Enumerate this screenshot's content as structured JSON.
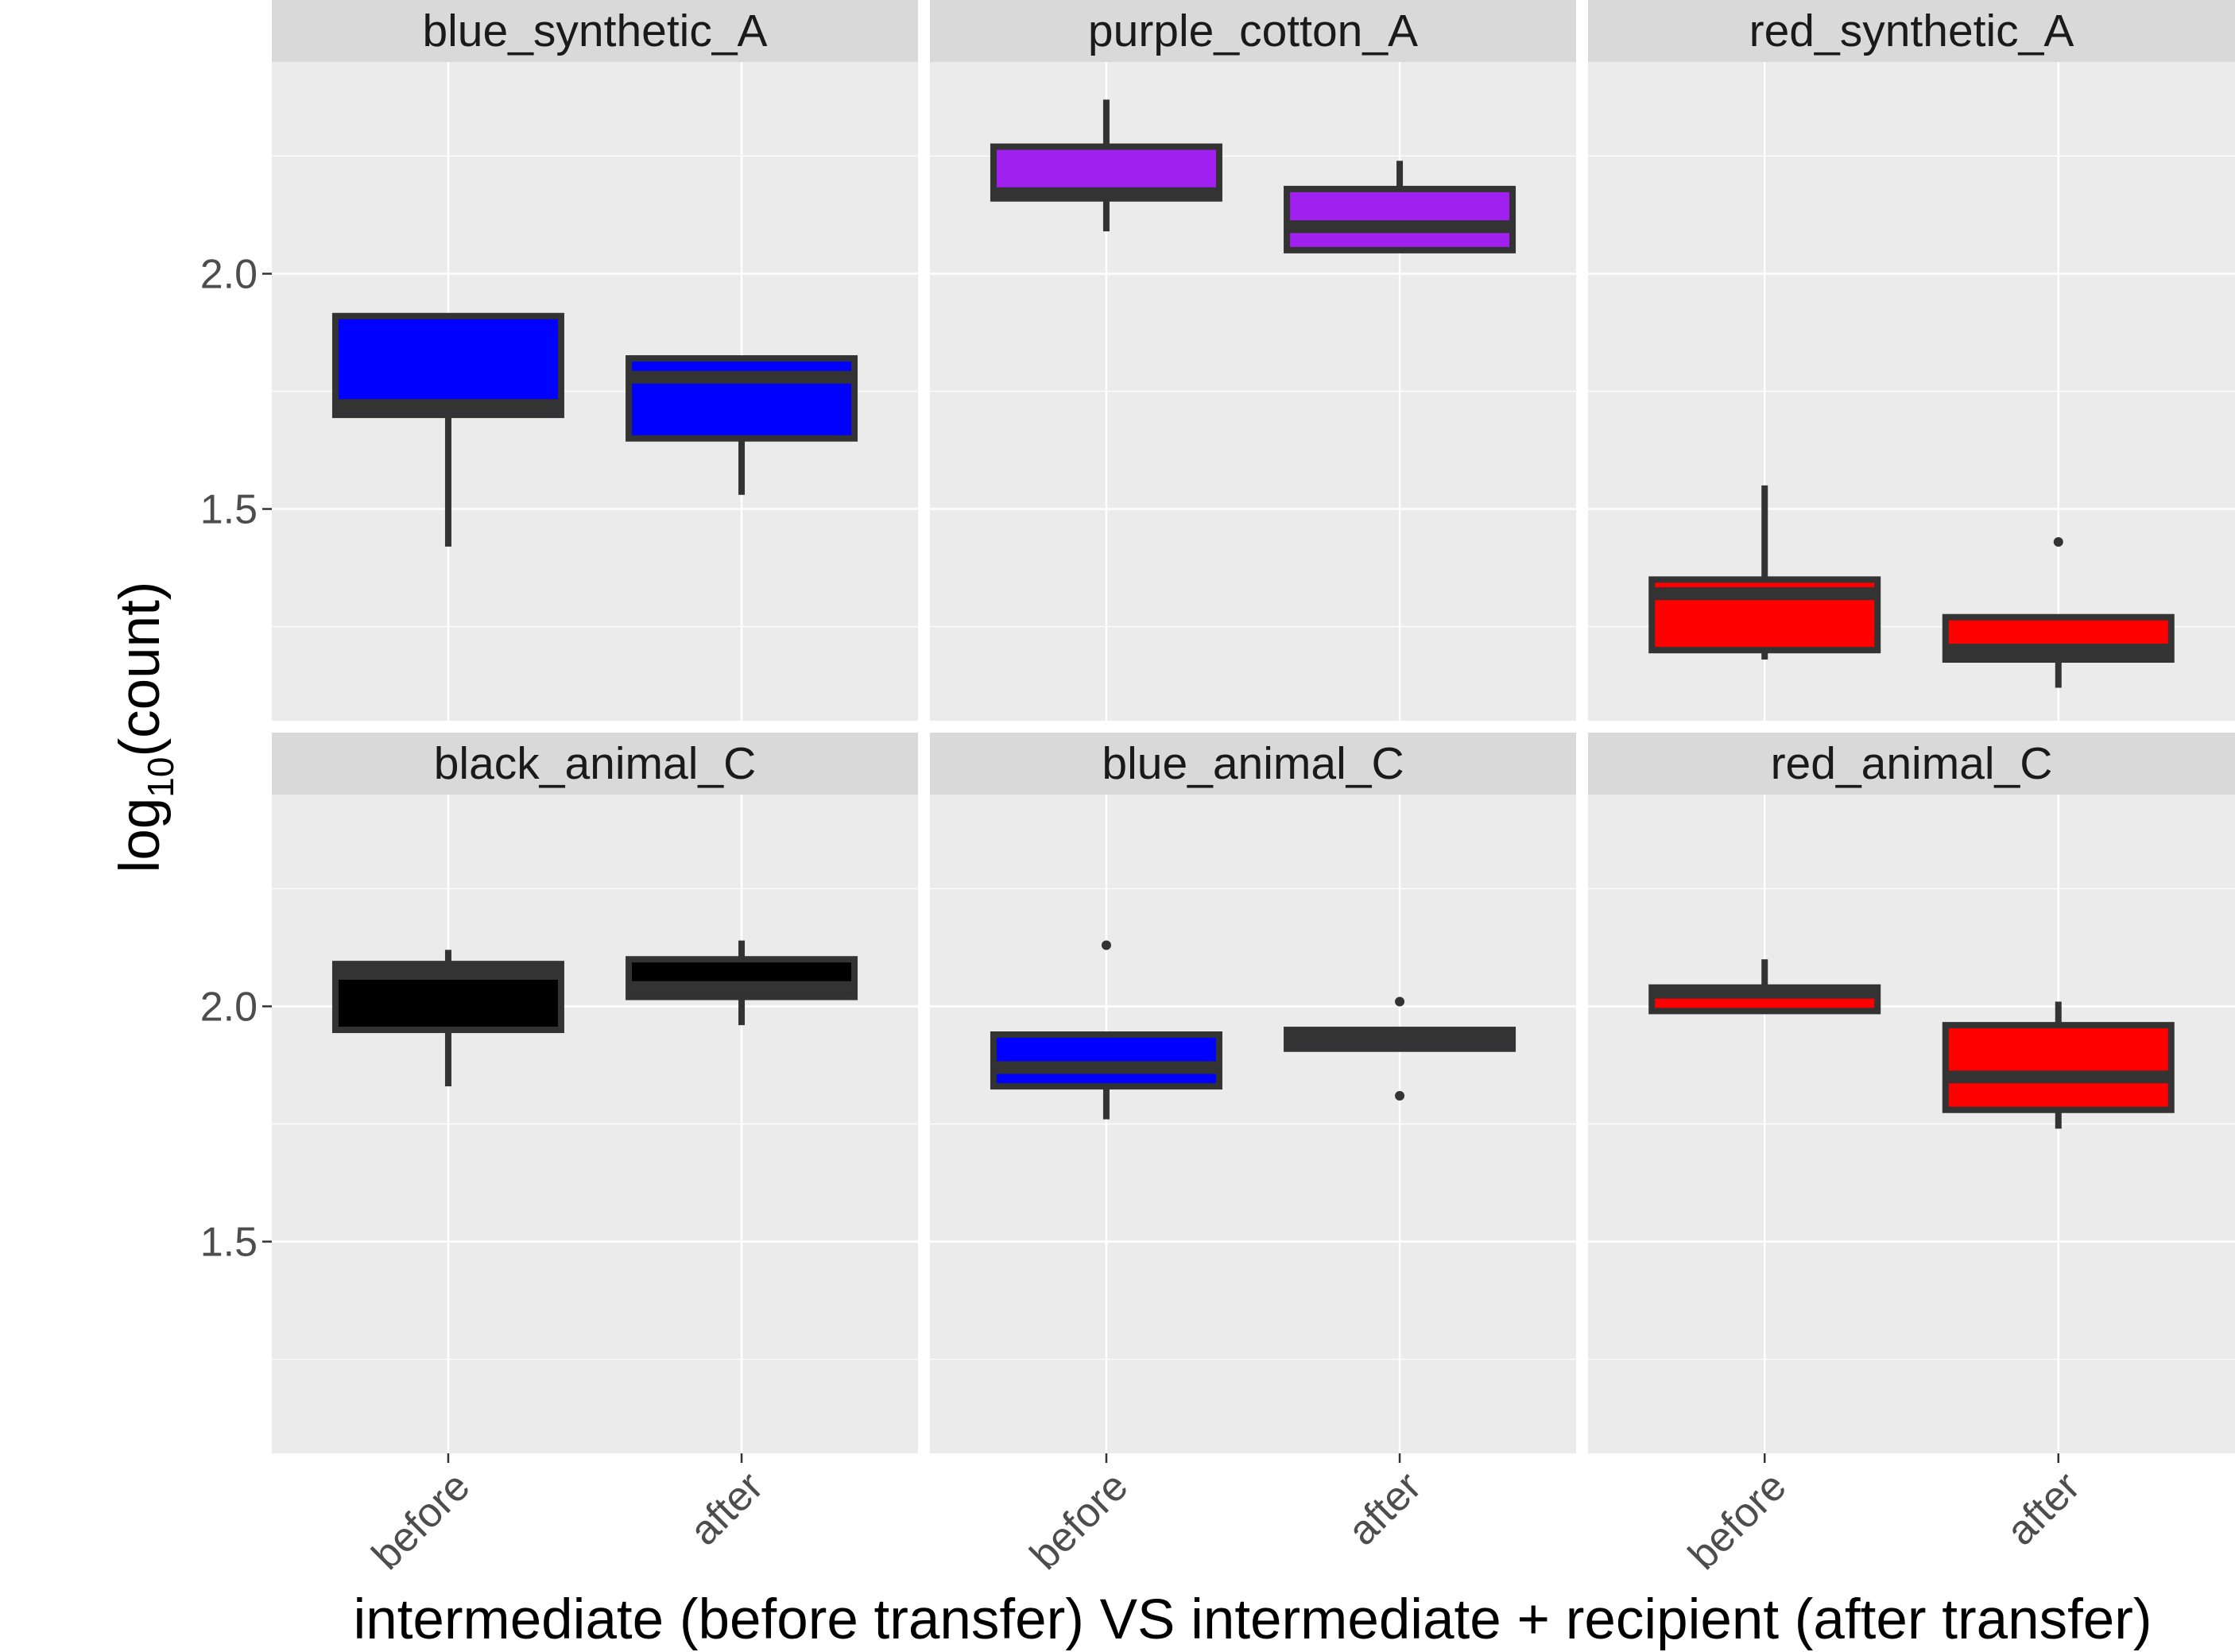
{
  "chart_data": {
    "type": "boxplot",
    "facet_layout": "2 rows x 3 columns",
    "xlabel": "intermediate (before transfer) VS intermediate + recipient (after transfer)",
    "ylabel_main": "log",
    "ylabel_sub": "10",
    "ylabel_tail": "(count)",
    "categories": [
      "before",
      "after"
    ],
    "y_ticks": [
      1.5,
      2.0
    ],
    "y_tick_labels": [
      "1.5",
      "2.0"
    ],
    "ylim": [
      1.05,
      2.45
    ],
    "grid": true,
    "legend": "none",
    "panels": [
      {
        "name": "blue_synthetic_A",
        "fill": "#0000FF",
        "boxes": [
          {
            "category": "before",
            "whisker_low": 1.42,
            "q1": 1.7,
            "median": 1.72,
            "q3": 1.91,
            "whisker_high": 1.91,
            "outliers": []
          },
          {
            "category": "after",
            "whisker_low": 1.53,
            "q1": 1.65,
            "median": 1.78,
            "q3": 1.82,
            "whisker_high": 1.82,
            "outliers": []
          }
        ]
      },
      {
        "name": "purple_cotton_A",
        "fill": "#A020F0",
        "boxes": [
          {
            "category": "before",
            "whisker_low": 2.09,
            "q1": 2.16,
            "median": 2.17,
            "q3": 2.27,
            "whisker_high": 2.37,
            "outliers": []
          },
          {
            "category": "after",
            "whisker_low": 2.05,
            "q1": 2.05,
            "median": 2.1,
            "q3": 2.18,
            "whisker_high": 2.24,
            "outliers": []
          }
        ]
      },
      {
        "name": "red_synthetic_A",
        "fill": "#FF0000",
        "boxes": [
          {
            "category": "before",
            "whisker_low": 1.18,
            "q1": 1.2,
            "median": 1.32,
            "q3": 1.35,
            "whisker_high": 1.55,
            "outliers": []
          },
          {
            "category": "after",
            "whisker_low": 1.12,
            "q1": 1.18,
            "median": 1.2,
            "q3": 1.27,
            "whisker_high": 1.27,
            "outliers": [
              1.43
            ]
          }
        ]
      },
      {
        "name": "black_animal_C",
        "fill": "#000000",
        "boxes": [
          {
            "category": "before",
            "whisker_low": 1.83,
            "q1": 1.95,
            "median": 2.07,
            "q3": 2.09,
            "whisker_high": 2.12,
            "outliers": []
          },
          {
            "category": "after",
            "whisker_low": 1.96,
            "q1": 2.02,
            "median": 2.04,
            "q3": 2.1,
            "whisker_high": 2.14,
            "outliers": []
          }
        ]
      },
      {
        "name": "blue_animal_C",
        "fill": "#0000FF",
        "boxes": [
          {
            "category": "before",
            "whisker_low": 1.76,
            "q1": 1.83,
            "median": 1.87,
            "q3": 1.94,
            "whisker_high": 1.94,
            "outliers": [
              2.13
            ]
          },
          {
            "category": "after",
            "whisker_low": 1.91,
            "q1": 1.91,
            "median": 1.93,
            "q3": 1.95,
            "whisker_high": 1.95,
            "outliers": [
              2.01,
              1.81
            ]
          }
        ]
      },
      {
        "name": "red_animal_C",
        "fill": "#FF0000",
        "boxes": [
          {
            "category": "before",
            "whisker_low": 1.99,
            "q1": 1.99,
            "median": 2.03,
            "q3": 2.04,
            "whisker_high": 2.1,
            "outliers": []
          },
          {
            "category": "after",
            "whisker_low": 1.74,
            "q1": 1.78,
            "median": 1.85,
            "q3": 1.96,
            "whisker_high": 2.01,
            "outliers": []
          }
        ]
      }
    ]
  },
  "colors": {
    "panel_background": "#EBEBEB",
    "strip_background": "#D9D9D9",
    "grid_major": "#FFFFFF",
    "box_outline": "#333333"
  }
}
